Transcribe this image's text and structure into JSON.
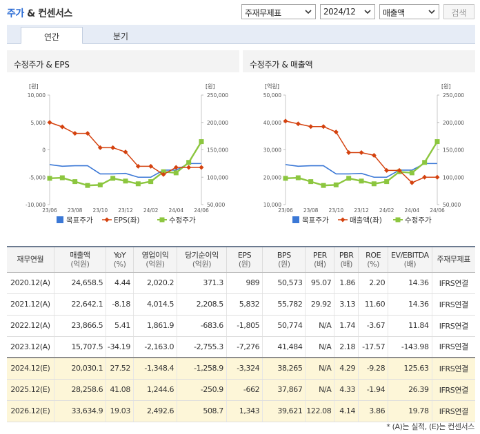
{
  "header": {
    "title_prefix": "주가",
    "title_suffix": "& 컨센서스",
    "selects": [
      {
        "value": "주재무제표"
      },
      {
        "value": "2024/12"
      },
      {
        "value": "매출액"
      }
    ],
    "search_label": "검색"
  },
  "tabs": [
    {
      "label": "연간",
      "active": true
    },
    {
      "label": "분기",
      "active": false
    }
  ],
  "colors": {
    "target_price": "#3b78d6",
    "secondary_series": "#d4420f",
    "adj_price": "#8cc63f"
  },
  "chart_data": [
    {
      "type": "line",
      "title": "수정주가 & EPS",
      "left_unit": "[원]",
      "right_unit": "[원]",
      "categories": [
        "23/06",
        "23/07",
        "23/08",
        "23/09",
        "23/10",
        "23/11",
        "23/12",
        "24/01",
        "24/02",
        "24/03",
        "24/04",
        "24/05",
        "24/06"
      ],
      "x_tick_labels": [
        "23/06",
        "23/08",
        "23/10",
        "23/12",
        "24/02",
        "24/04",
        "24/06"
      ],
      "left_axis": {
        "min": -10000,
        "max": 10000,
        "ticks": [
          "10,000",
          "5,000",
          "0",
          "-5,000",
          "-10,000"
        ]
      },
      "right_axis": {
        "min": 50000,
        "max": 250000,
        "ticks": [
          "250,000",
          "200,000",
          "150,000",
          "100,000",
          "50,000"
        ]
      },
      "series": [
        {
          "name": "목표주가",
          "axis": "right",
          "values": [
            123000,
            120000,
            121000,
            121000,
            106000,
            106000,
            107000,
            100000,
            100000,
            113000,
            113000,
            125000,
            125000
          ]
        },
        {
          "name": "EPS(좌)",
          "axis": "left",
          "values": [
            5000,
            4200,
            3000,
            3000,
            400,
            400,
            -400,
            -3000,
            -3000,
            -4500,
            -3200,
            -3200,
            -3200
          ]
        },
        {
          "name": "수정주가",
          "axis": "right",
          "values": [
            98000,
            99000,
            92000,
            85000,
            86000,
            98000,
            93000,
            88000,
            92000,
            110000,
            108000,
            127000,
            165000
          ]
        }
      ],
      "legend": "bottom"
    },
    {
      "type": "line",
      "title": "수정주가 & 매출액",
      "left_unit": "[억원]",
      "right_unit": "[원]",
      "categories": [
        "23/06",
        "23/07",
        "23/08",
        "23/09",
        "23/10",
        "23/11",
        "23/12",
        "24/01",
        "24/02",
        "24/03",
        "24/04",
        "24/05",
        "24/06"
      ],
      "x_tick_labels": [
        "23/06",
        "23/08",
        "23/10",
        "23/12",
        "24/02",
        "24/04",
        "24/06"
      ],
      "left_axis": {
        "min": 10000,
        "max": 50000,
        "ticks": [
          "50,000",
          "40,000",
          "30,000",
          "20,000",
          "10,000"
        ]
      },
      "right_axis": {
        "min": 50000,
        "max": 250000,
        "ticks": [
          "250,000",
          "200,000",
          "150,000",
          "100,000",
          "50,000"
        ]
      },
      "series": [
        {
          "name": "목표주가",
          "axis": "right",
          "values": [
            123000,
            120000,
            121000,
            121000,
            106000,
            106000,
            107000,
            100000,
            100000,
            113000,
            113000,
            125000,
            125000
          ]
        },
        {
          "name": "매출액(좌)",
          "axis": "left",
          "values": [
            40500,
            39500,
            38500,
            38500,
            36500,
            29000,
            29000,
            28000,
            22500,
            22500,
            18000,
            20000,
            20000
          ]
        },
        {
          "name": "수정주가",
          "axis": "right",
          "values": [
            98000,
            99000,
            92000,
            85000,
            86000,
            98000,
            93000,
            88000,
            92000,
            110000,
            108000,
            127000,
            165000
          ]
        }
      ],
      "legend": "bottom"
    }
  ],
  "table": {
    "columns": [
      {
        "label": "재무연월",
        "sub": ""
      },
      {
        "label": "매출액",
        "sub": "(억원)"
      },
      {
        "label": "YoY",
        "sub": "(%)"
      },
      {
        "label": "영업이익",
        "sub": "(억원)"
      },
      {
        "label": "당기순이익",
        "sub": "(억원)"
      },
      {
        "label": "EPS",
        "sub": "(원)"
      },
      {
        "label": "BPS",
        "sub": "(원)"
      },
      {
        "label": "PER",
        "sub": "(배)"
      },
      {
        "label": "PBR",
        "sub": "(배)"
      },
      {
        "label": "ROE",
        "sub": "(%)"
      },
      {
        "label": "EV/EBITDA",
        "sub": "(배)"
      },
      {
        "label": "주재무제표",
        "sub": ""
      }
    ],
    "rows": [
      {
        "estimate": false,
        "cells": [
          "2020.12(A)",
          "24,658.5",
          "4.44",
          "2,020.2",
          "371.3",
          "989",
          "50,573",
          "95.07",
          "1.86",
          "2.20",
          "14.36",
          "IFRS연결"
        ]
      },
      {
        "estimate": false,
        "cells": [
          "2021.12(A)",
          "22,642.1",
          "-8.18",
          "4,014.5",
          "2,208.5",
          "5,832",
          "55,782",
          "29.92",
          "3.13",
          "11.60",
          "14.36",
          "IFRS연결"
        ]
      },
      {
        "estimate": false,
        "cells": [
          "2022.12(A)",
          "23,866.5",
          "5.41",
          "1,861.9",
          "-683.6",
          "-1,805",
          "50,774",
          "N/A",
          "1.74",
          "-3.67",
          "11.84",
          "IFRS연결"
        ]
      },
      {
        "estimate": false,
        "cells": [
          "2023.12(A)",
          "15,707.5",
          "-34.19",
          "-2,163.0",
          "-2,755.3",
          "-7,276",
          "41,484",
          "N/A",
          "2.18",
          "-17.57",
          "-143.98",
          "IFRS연결"
        ]
      },
      {
        "estimate": true,
        "cells": [
          "2024.12(E)",
          "20,030.1",
          "27.52",
          "-1,348.4",
          "-1,258.9",
          "-3,324",
          "38,265",
          "N/A",
          "4.29",
          "-9.28",
          "125.63",
          "IFRS연결"
        ]
      },
      {
        "estimate": true,
        "cells": [
          "2025.12(E)",
          "28,258.6",
          "41.08",
          "1,244.6",
          "-250.9",
          "-662",
          "37,867",
          "N/A",
          "4.33",
          "-1.94",
          "26.39",
          "IFRS연결"
        ]
      },
      {
        "estimate": true,
        "cells": [
          "2026.12(E)",
          "33,634.9",
          "19.03",
          "2,492.6",
          "508.7",
          "1,343",
          "39,621",
          "122.08",
          "4.14",
          "3.86",
          "19.78",
          "IFRS연결"
        ]
      }
    ]
  },
  "footnote": "* (A)는 실적, (E)는 컨센서스"
}
